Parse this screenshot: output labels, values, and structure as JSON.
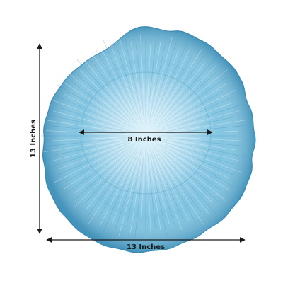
{
  "dimensions": {
    "vertical_label": "13 Inches",
    "horizontal_label": "13 Inches",
    "inner_label": "8 Inches"
  },
  "colors": {
    "plate_base": "#7cc4e2",
    "plate_light": "#b8e2f2",
    "plate_dark": "#3f8fb8",
    "arrow": "#1a1a1a"
  },
  "icons": {
    "arrow": "arrow-icon"
  }
}
